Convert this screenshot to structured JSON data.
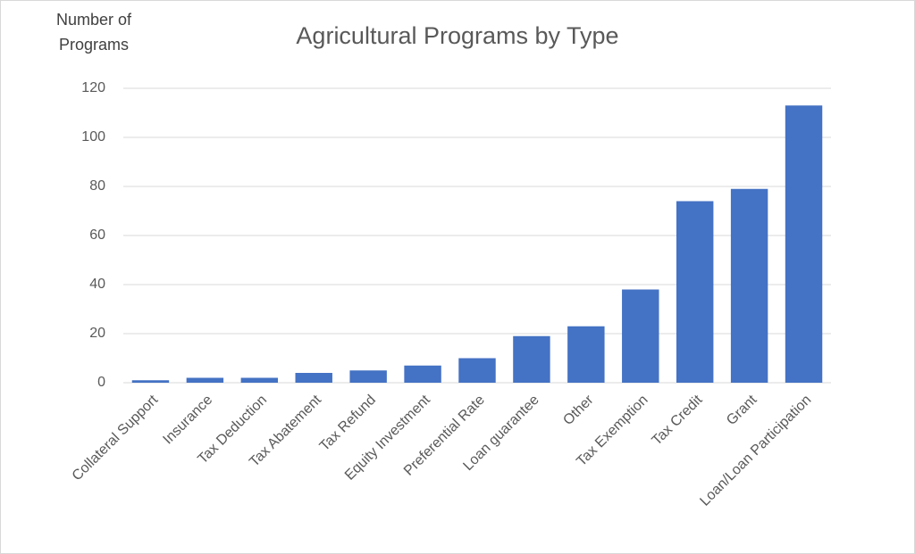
{
  "chart_data": {
    "type": "bar",
    "title": "Agricultural Programs by Type",
    "y_label": "Number of Programs",
    "categories": [
      "Collateral Support",
      "Insurance",
      "Tax Deduction",
      "Tax Abatement",
      "Tax Refund",
      "Equity Investment",
      "Preferential Rate",
      "Loan guarantee",
      "Other",
      "Tax Exemption",
      "Tax Credit",
      "Grant",
      "Loan/Loan Participation"
    ],
    "values": [
      1,
      2,
      2,
      4,
      5,
      7,
      10,
      19,
      23,
      38,
      74,
      79,
      113
    ],
    "color": "#4472c4",
    "ylim": [
      0,
      120
    ],
    "yticks": [
      0,
      20,
      40,
      60,
      80,
      100,
      120
    ],
    "grid": true
  }
}
